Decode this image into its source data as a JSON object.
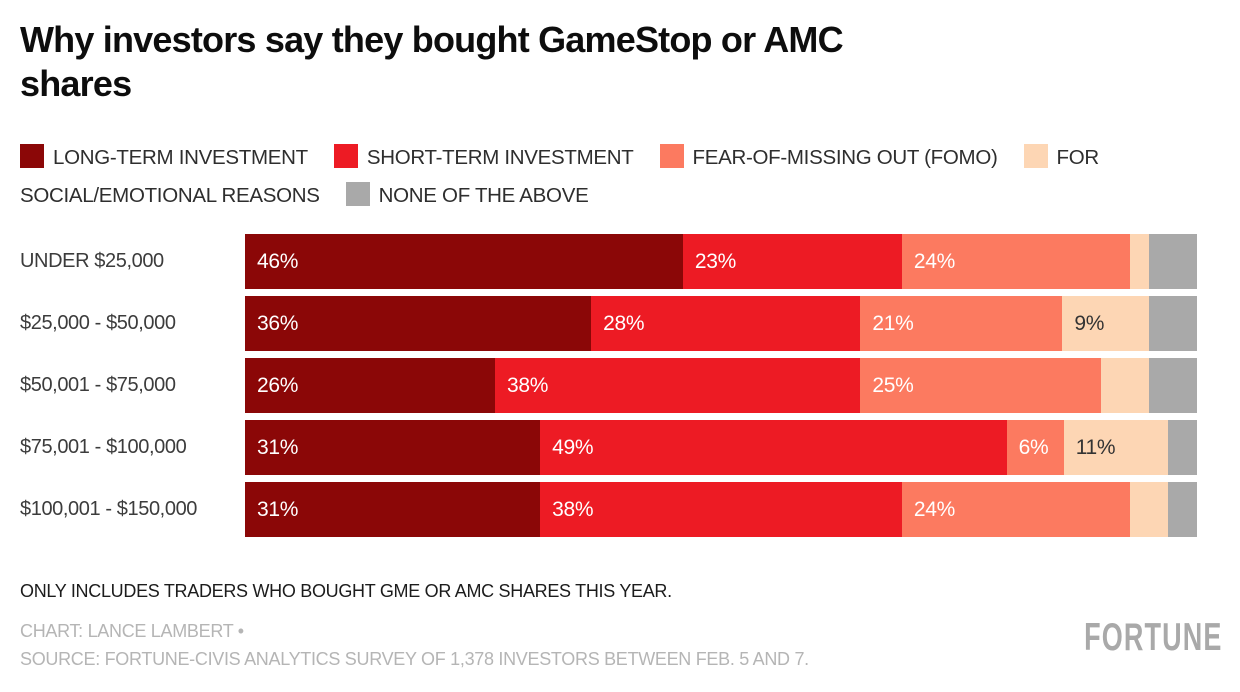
{
  "title": {
    "line1": "Why investors say they bought GameStop or AMC",
    "line2": "shares",
    "full": "Why investors say they bought GameStop or AMC shares"
  },
  "legend": [
    {
      "label": "LONG-TERM INVESTMENT",
      "color": "#8b0707"
    },
    {
      "label": "SHORT-TERM INVESTMENT",
      "color": "#ed1b24"
    },
    {
      "label": "FEAR-OF-MISSING OUT (FOMO)",
      "color": "#fc7a60"
    },
    {
      "label": "FOR SOCIAL/EMOTIONAL REASONS",
      "color": "#fdd6b4"
    },
    {
      "label": "NONE OF THE ABOVE",
      "color": "#a9a9a9"
    }
  ],
  "colors": {
    "long_term": "#8b0707",
    "short_term": "#ed1b24",
    "fomo": "#fc7a60",
    "social_emotional": "#fdd6b4",
    "none_above": "#a9a9a9",
    "bar_label_light": "#ffffff",
    "bar_label_dark": "#333333",
    "credits_gray": "#b5b5b5"
  },
  "chart_data": {
    "type": "bar",
    "orientation": "horizontal-stacked",
    "unit": "%",
    "title": "Why investors say they bought GameStop or AMC shares",
    "categories": [
      "UNDER $25,000",
      "$25,000 - $50,000",
      "$50,001 - $75,000",
      "$75,001 - $100,000",
      "$100,001 - $150,000"
    ],
    "series_names": [
      "LONG-TERM INVESTMENT",
      "SHORT-TERM INVESTMENT",
      "FEAR-OF-MISSING OUT (FOMO)",
      "FOR SOCIAL/EMOTIONAL REASONS",
      "NONE OF THE ABOVE"
    ],
    "rows": [
      {
        "category": "UNDER $25,000",
        "segments": [
          {
            "series": "LONG-TERM INVESTMENT",
            "value": 46,
            "label": "46%"
          },
          {
            "series": "SHORT-TERM INVESTMENT",
            "value": 23,
            "label": "23%"
          },
          {
            "series": "FEAR-OF-MISSING OUT (FOMO)",
            "value": 24,
            "label": "24%"
          },
          {
            "series": "FOR SOCIAL/EMOTIONAL REASONS",
            "value": 2,
            "label": "",
            "estimated": true
          },
          {
            "series": "NONE OF THE ABOVE",
            "value": 5,
            "label": "",
            "estimated": true
          }
        ]
      },
      {
        "category": "$25,000 - $50,000",
        "segments": [
          {
            "series": "LONG-TERM INVESTMENT",
            "value": 36,
            "label": "36%"
          },
          {
            "series": "SHORT-TERM INVESTMENT",
            "value": 28,
            "label": "28%"
          },
          {
            "series": "FEAR-OF-MISSING OUT (FOMO)",
            "value": 21,
            "label": "21%"
          },
          {
            "series": "FOR SOCIAL/EMOTIONAL REASONS",
            "value": 9,
            "label": "9%"
          },
          {
            "series": "NONE OF THE ABOVE",
            "value": 5,
            "label": "",
            "estimated": true
          }
        ]
      },
      {
        "category": "$50,001 - $75,000",
        "segments": [
          {
            "series": "LONG-TERM INVESTMENT",
            "value": 26,
            "label": "26%"
          },
          {
            "series": "SHORT-TERM INVESTMENT",
            "value": 38,
            "label": "38%"
          },
          {
            "series": "FEAR-OF-MISSING OUT (FOMO)",
            "value": 25,
            "label": "25%"
          },
          {
            "series": "FOR SOCIAL/EMOTIONAL REASONS",
            "value": 5,
            "label": "",
            "estimated": true
          },
          {
            "series": "NONE OF THE ABOVE",
            "value": 5,
            "label": "",
            "estimated": true
          }
        ]
      },
      {
        "category": "$75,001 - $100,000",
        "segments": [
          {
            "series": "LONG-TERM INVESTMENT",
            "value": 31,
            "label": "31%"
          },
          {
            "series": "SHORT-TERM INVESTMENT",
            "value": 49,
            "label": "49%"
          },
          {
            "series": "FEAR-OF-MISSING OUT (FOMO)",
            "value": 6,
            "label": "6%"
          },
          {
            "series": "FOR SOCIAL/EMOTIONAL REASONS",
            "value": 11,
            "label": "11%"
          },
          {
            "series": "NONE OF THE ABOVE",
            "value": 3,
            "label": "",
            "estimated": true
          }
        ]
      },
      {
        "category": "$100,001 - $150,000",
        "segments": [
          {
            "series": "LONG-TERM INVESTMENT",
            "value": 31,
            "label": "31%"
          },
          {
            "series": "SHORT-TERM INVESTMENT",
            "value": 38,
            "label": "38%"
          },
          {
            "series": "FEAR-OF-MISSING OUT (FOMO)",
            "value": 24,
            "label": "24%"
          },
          {
            "series": "FOR SOCIAL/EMOTIONAL REASONS",
            "value": 4,
            "label": "",
            "estimated": true
          },
          {
            "series": "NONE OF THE ABOVE",
            "value": 3,
            "label": "",
            "estimated": true
          }
        ]
      }
    ],
    "legend_position": "top",
    "grid": false
  },
  "footer": {
    "note": "ONLY INCLUDES TRADERS WHO BOUGHT GME OR AMC SHARES THIS YEAR.",
    "credit_line1": "CHART: LANCE LAMBERT •",
    "credit_line2": "SOURCE: FORTUNE-CIVIS ANALYTICS SURVEY OF 1,378 INVESTORS BETWEEN FEB. 5 AND 7.",
    "logo": "FORTUNE"
  }
}
